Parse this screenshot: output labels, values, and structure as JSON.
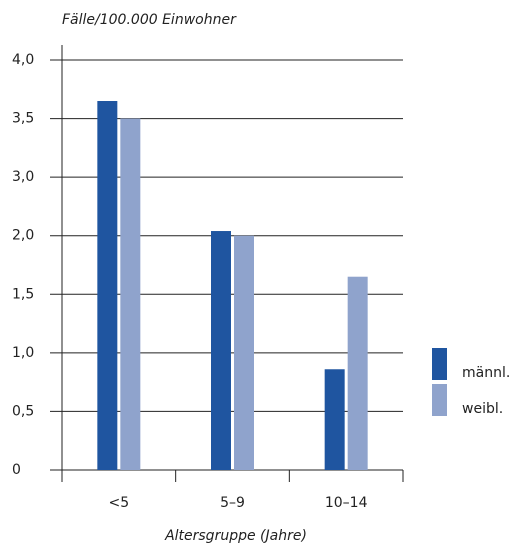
{
  "chart_data": {
    "type": "bar",
    "title": "Fälle/100.000 Einwohner",
    "x_label": "Altersgruppe (Jahre)",
    "categories": [
      "<5",
      "5–9",
      "10–14"
    ],
    "series": [
      {
        "name": "männl.",
        "color": "#1f55a0",
        "values": [
          3.65,
          2.08,
          0.86
        ]
      },
      {
        "name": "weibl.",
        "color": "#8fa3cc",
        "values": [
          3.5,
          2.0,
          1.65
        ]
      }
    ],
    "ylim": [
      0,
      4
    ],
    "yticks": [
      0,
      {
        "value": 0.5,
        "label": "0,5"
      },
      {
        "value": 1,
        "label": "1,0"
      },
      {
        "value": 1.5,
        "label": "1,5"
      },
      {
        "value": 2,
        "label": "2,0"
      },
      {
        "value": 3,
        "label": "3,0"
      },
      {
        "value": 3.5,
        "label": "3,5"
      },
      {
        "value": 4,
        "label": "4,0"
      }
    ],
    "grid": true
  }
}
